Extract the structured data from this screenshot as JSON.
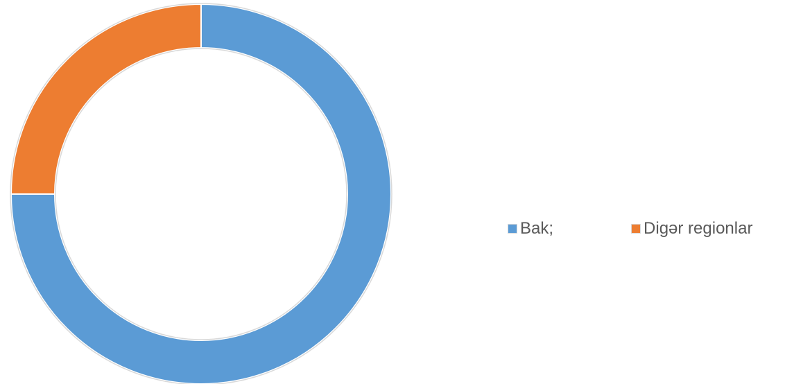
{
  "chart_data": {
    "type": "pie",
    "donut": true,
    "title": "",
    "categories": [
      "Bak;",
      "Digər regionlar"
    ],
    "values": [
      75,
      25
    ],
    "colors": [
      "#5B9BD5",
      "#ED7D31"
    ],
    "legend_position": "right",
    "data_labels": false
  },
  "legend": {
    "items": [
      {
        "label": "Bak;",
        "color": "#5B9BD5"
      },
      {
        "label": "Digər regionlar",
        "color": "#ED7D31"
      }
    ]
  }
}
